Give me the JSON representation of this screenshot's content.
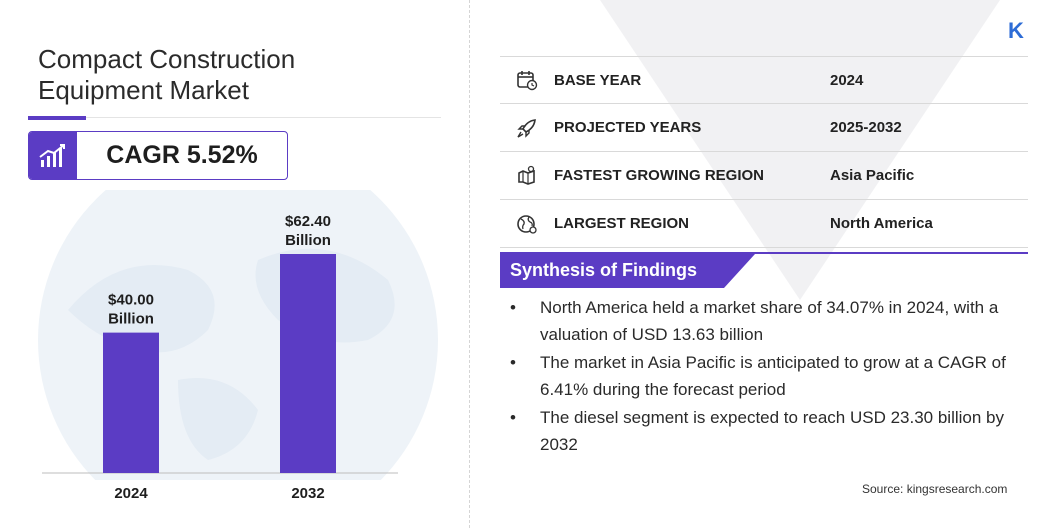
{
  "title": "Compact Construction Equipment Market",
  "cagr": "CAGR 5.52%",
  "brand_icon": "kingsresearch-logo",
  "chart_data": {
    "type": "bar",
    "categories": [
      "2024",
      "2032"
    ],
    "values": [
      40.0,
      62.4
    ],
    "data_labels": [
      "$40.00 Billion",
      "$62.40 Billion"
    ],
    "data_label_lines": [
      [
        "$40.00",
        "Billion"
      ],
      [
        "$62.40",
        "Billion"
      ]
    ],
    "title": "",
    "xlabel": "",
    "ylabel": "",
    "ylim": [
      0,
      62.4
    ],
    "grid": false,
    "bar_color": "#5b3cc4"
  },
  "info": [
    {
      "icon": "calendar-icon",
      "label": "BASE YEAR",
      "value": "2024"
    },
    {
      "icon": "rocket-icon",
      "label": "PROJECTED YEARS",
      "value": "2025-2032"
    },
    {
      "icon": "region-map-icon",
      "label": "FASTEST GROWING REGION",
      "value": "Asia Pacific"
    },
    {
      "icon": "globe-icon",
      "label": "LARGEST REGION",
      "value": "North America"
    }
  ],
  "synthesis": {
    "title": "Synthesis of Findings",
    "findings": [
      "North America held a market share of 34.07% in 2024, with a valuation of USD 13.63 billion",
      "The market in Asia Pacific is anticipated to grow at a CAGR of 6.41% during the forecast period",
      "The diesel segment is expected to reach USD 23.30 billion by 2032"
    ]
  },
  "source": "Source:  kingsresearch.com",
  "colors": {
    "accent": "#5b3cc4",
    "brand": "#2d6cd6"
  }
}
